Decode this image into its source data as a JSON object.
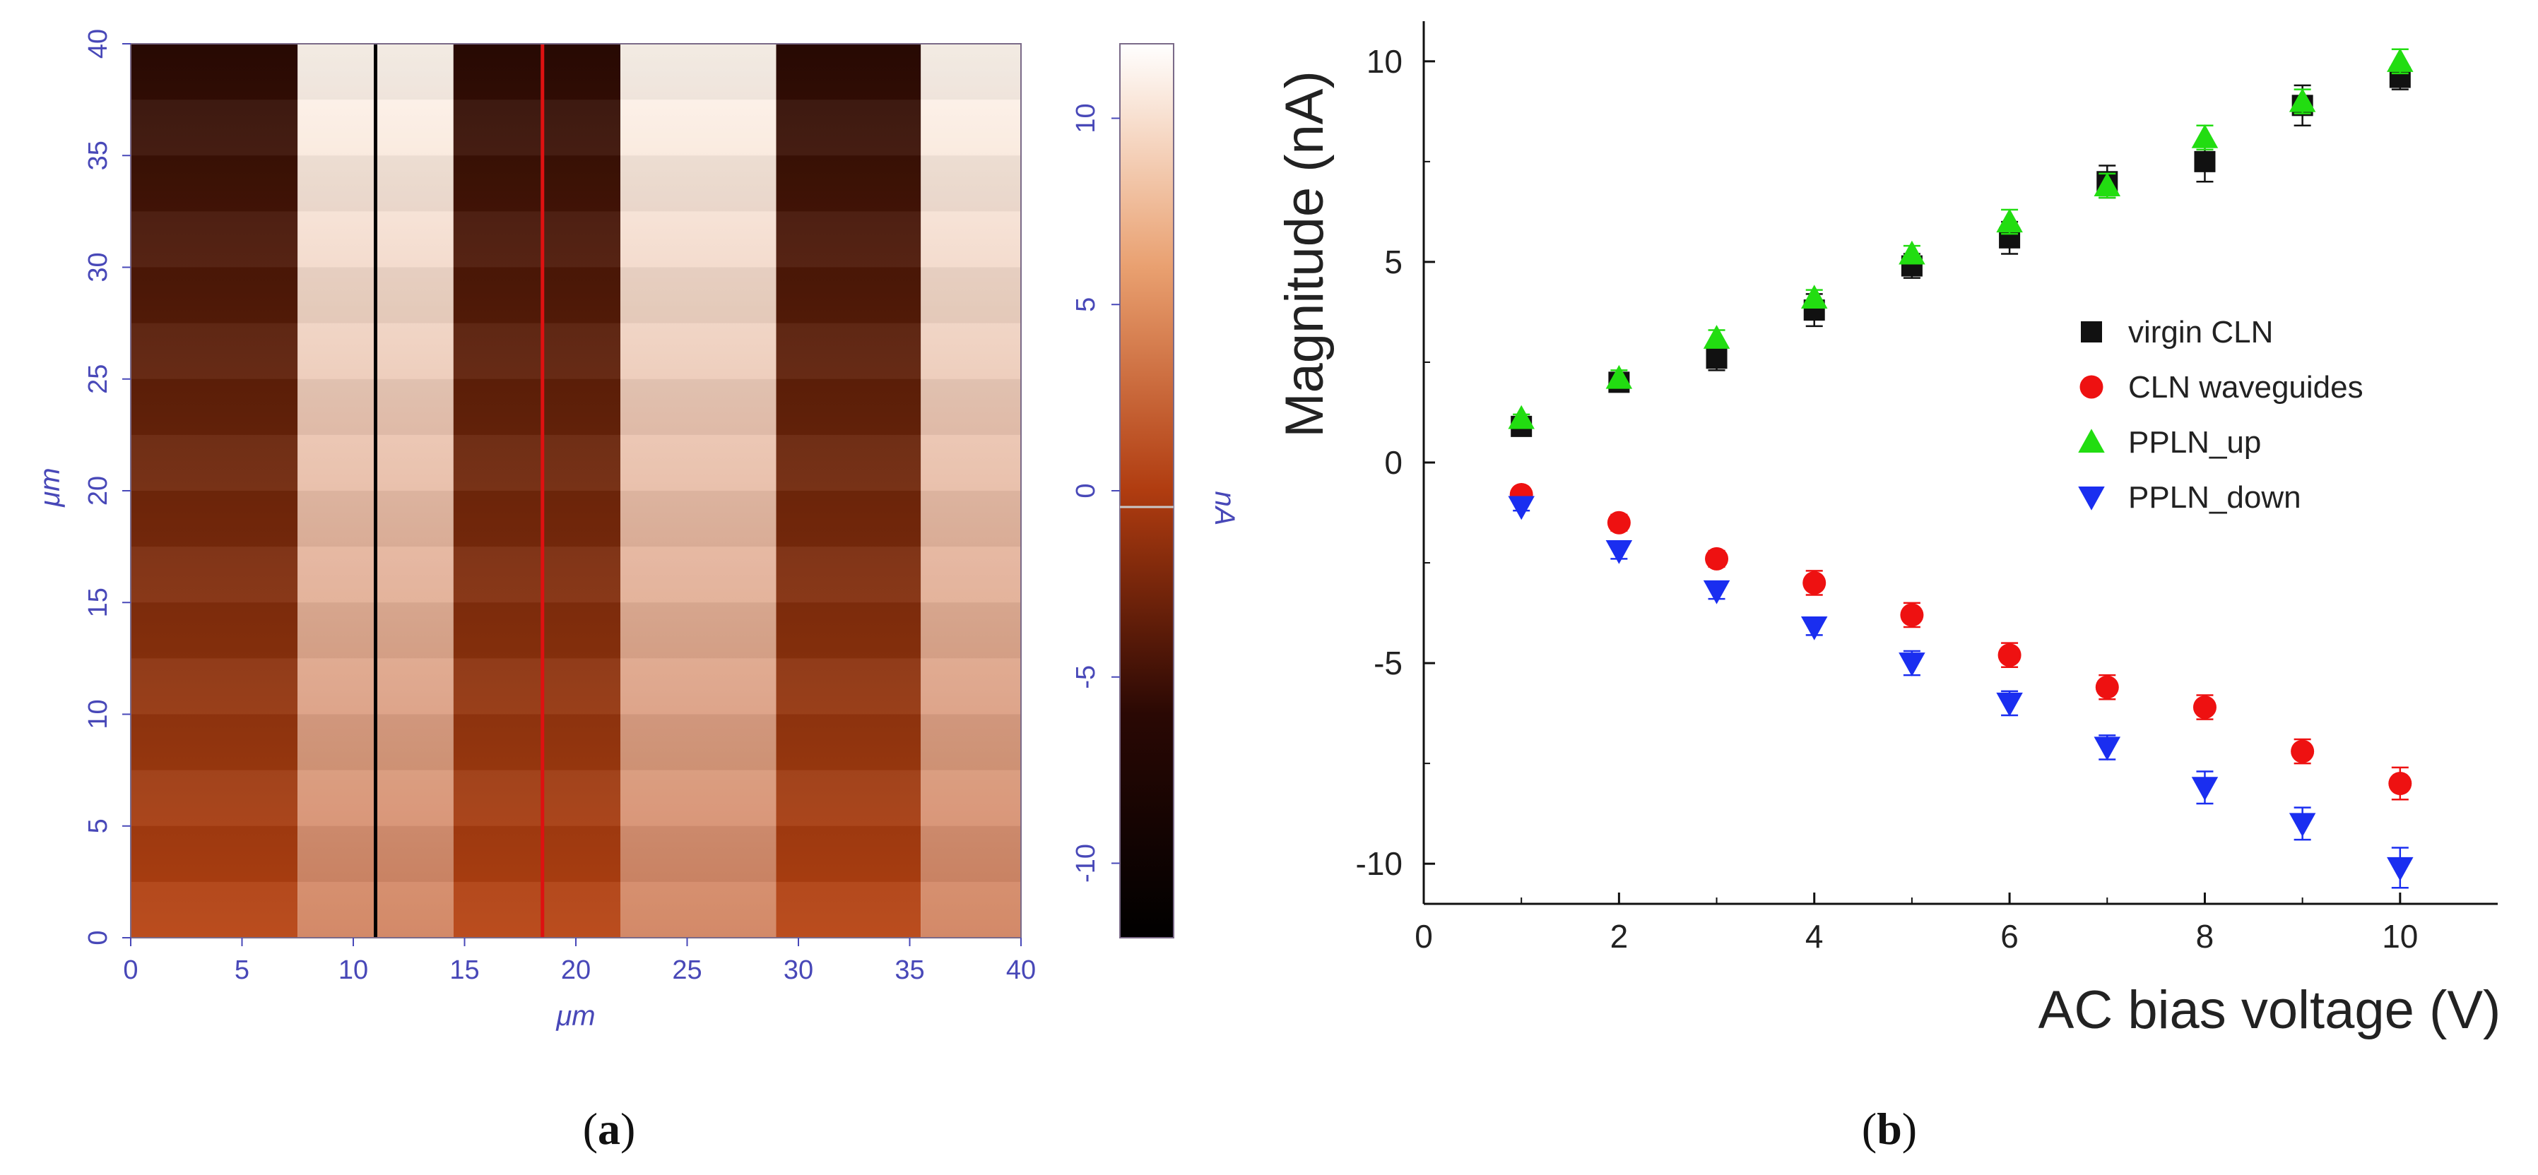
{
  "panel_a": {
    "caption_open": "(",
    "caption_letter": "a",
    "caption_close": ")",
    "chart_data": {
      "type": "heatmap",
      "xlabel": "μm",
      "ylabel": "μm",
      "x_ticks": [
        "0",
        "5",
        "10",
        "15",
        "20",
        "25",
        "30",
        "35",
        "40"
      ],
      "y_ticks": [
        "0",
        "5",
        "10",
        "15",
        "20",
        "25",
        "30",
        "35",
        "40"
      ],
      "xlim": [
        0,
        40
      ],
      "ylim": [
        0,
        40
      ],
      "colorbar": {
        "label": "nA",
        "ticks": [
          "-10",
          "-5",
          "0",
          "5",
          "10"
        ],
        "range": [
          -12,
          12
        ]
      },
      "domain_bands": [
        {
          "x_start": 0,
          "x_end": 7.5,
          "level": "low"
        },
        {
          "x_start": 7.5,
          "x_end": 14.5,
          "level": "high"
        },
        {
          "x_start": 14.5,
          "x_end": 22,
          "level": "low"
        },
        {
          "x_start": 22,
          "x_end": 29,
          "level": "high"
        },
        {
          "x_start": 29,
          "x_end": 35.5,
          "level": "low"
        },
        {
          "x_start": 35.5,
          "x_end": 40,
          "level": "high"
        }
      ],
      "profile_lines": [
        {
          "name": "black-profile-line",
          "x": 11,
          "color": "#000000"
        },
        {
          "name": "red-profile-line",
          "x": 18.5,
          "color": "#dd1111"
        }
      ],
      "colors": {
        "dark": "#2a0a04",
        "mid": "#b84412",
        "light": "#fff8f0"
      }
    }
  },
  "panel_b": {
    "caption_open": "(",
    "caption_letter": "b",
    "caption_close": ")",
    "chart_data": {
      "type": "scatter",
      "xlabel": "AC bias voltage (V)",
      "ylabel": "Magnitude (nA)",
      "xlim": [
        0,
        11
      ],
      "ylim": [
        -11,
        11
      ],
      "x_ticks": [
        "0",
        "2",
        "4",
        "6",
        "8",
        "10"
      ],
      "y_ticks": [
        "-10",
        "-5",
        "0",
        "5",
        "10"
      ],
      "x": [
        1,
        2,
        3,
        4,
        5,
        6,
        7,
        8,
        9,
        10
      ],
      "series": [
        {
          "name": "virgin CLN",
          "marker": "square",
          "color": "#111111",
          "values": [
            0.9,
            2.0,
            2.6,
            3.8,
            4.9,
            5.6,
            7.0,
            7.5,
            8.9,
            9.6
          ],
          "errors": [
            0.1,
            0.2,
            0.3,
            0.4,
            0.3,
            0.4,
            0.4,
            0.5,
            0.5,
            0.3
          ]
        },
        {
          "name": "CLN waveguides",
          "marker": "circle",
          "color": "#ee1111",
          "values": [
            -0.8,
            -1.5,
            -2.4,
            -3.0,
            -3.8,
            -4.8,
            -5.6,
            -6.1,
            -7.2,
            -8.0
          ],
          "errors": [
            0.1,
            0.2,
            0.2,
            0.3,
            0.3,
            0.3,
            0.3,
            0.3,
            0.3,
            0.4
          ]
        },
        {
          "name": "PPLN_up",
          "marker": "triangle-up",
          "color": "#22dd11",
          "values": [
            1.1,
            2.1,
            3.1,
            4.1,
            5.2,
            6.0,
            6.9,
            8.1,
            9.0,
            10.0
          ],
          "errors": [
            0.1,
            0.2,
            0.2,
            0.2,
            0.2,
            0.3,
            0.3,
            0.3,
            0.3,
            0.3
          ]
        },
        {
          "name": "PPLN_down",
          "marker": "triangle-down",
          "color": "#1a2ef0",
          "values": [
            -1.1,
            -2.2,
            -3.2,
            -4.1,
            -5.0,
            -6.0,
            -7.1,
            -8.1,
            -9.0,
            -10.1
          ],
          "errors": [
            0.1,
            0.2,
            0.2,
            0.2,
            0.3,
            0.3,
            0.3,
            0.4,
            0.4,
            0.5
          ]
        }
      ]
    }
  }
}
